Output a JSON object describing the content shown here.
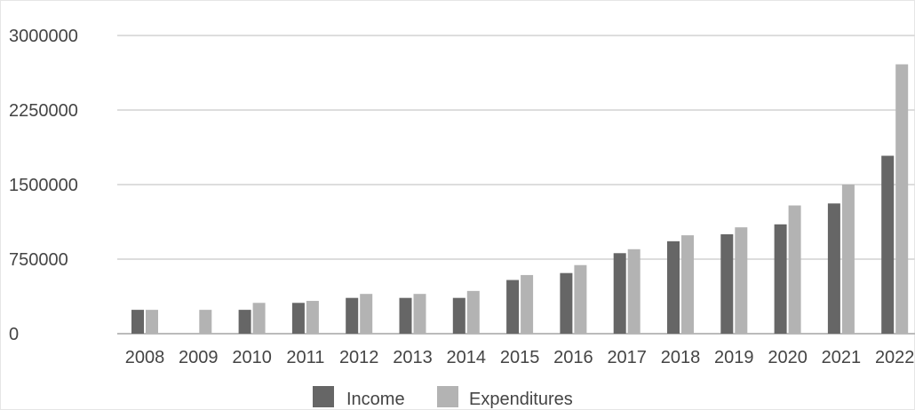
{
  "chart_data": {
    "type": "bar",
    "title": "",
    "xlabel": "",
    "ylabel": "",
    "ylim": [
      0,
      3000000
    ],
    "yticks": [
      0,
      750000,
      1500000,
      2250000,
      3000000
    ],
    "grid": true,
    "legend_position": "bottom",
    "categories": [
      "2008",
      "2009",
      "2010",
      "2011",
      "2012",
      "2013",
      "2014",
      "2015",
      "2016",
      "2017",
      "2018",
      "2019",
      "2020",
      "2021",
      "2022"
    ],
    "series": [
      {
        "name": "Income",
        "color": "#666666",
        "values": [
          240000,
          0,
          240000,
          310000,
          360000,
          360000,
          360000,
          540000,
          610000,
          810000,
          930000,
          1000000,
          1100000,
          1310000,
          1790000
        ]
      },
      {
        "name": "Expenditures",
        "color": "#b3b3b3",
        "values": [
          240000,
          240000,
          310000,
          330000,
          400000,
          400000,
          430000,
          590000,
          690000,
          850000,
          990000,
          1070000,
          1290000,
          1500000,
          2710000
        ]
      }
    ]
  },
  "colors": {
    "gridline": "#dddddd",
    "axis": "#bbbbbb",
    "text": "#444444"
  }
}
